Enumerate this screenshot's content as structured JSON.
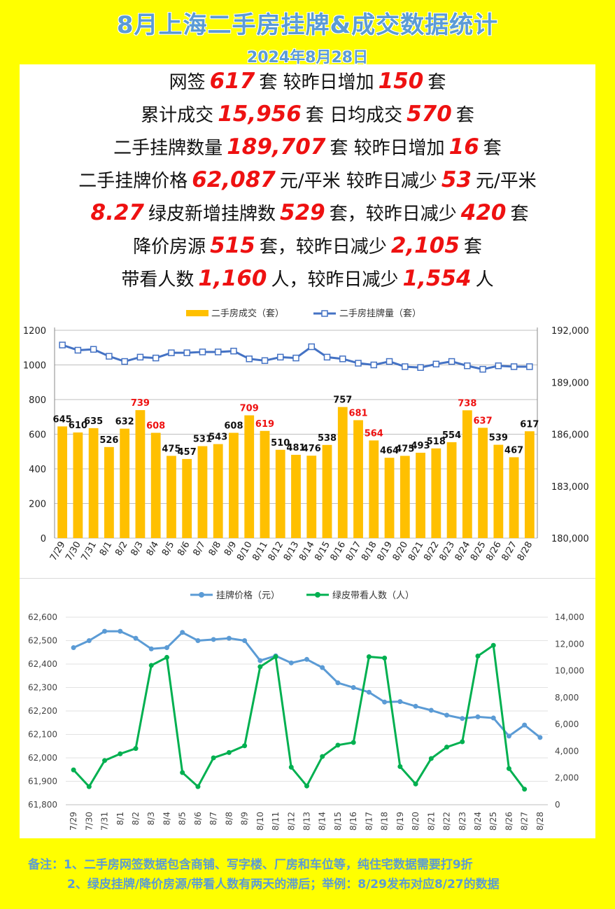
{
  "header": {
    "title": "8月上海二手房挂牌&成交数据统计",
    "date": "2024年8月28日"
  },
  "stats": [
    {
      "t1": "网签",
      "v1": "617",
      "t2": "套 较昨日增加",
      "v2": "150",
      "t3": "套"
    },
    {
      "t1": "累计成交",
      "v1": "15,956",
      "t2": "套 日均成交",
      "v2": "570",
      "t3": "套"
    },
    {
      "t1": "二手挂牌数量",
      "v1": "189,707",
      "t2": "套 较昨日增加",
      "v2": "16",
      "t3": "套"
    },
    {
      "t1": "二手挂牌价格",
      "v1": "62,087",
      "t2": "元/平米 较昨日减少",
      "v2": "53",
      "t3": "元/平米"
    },
    {
      "t1": "",
      "v1": "8.27",
      "t2": "绿皮新增挂牌数",
      "v2": "529",
      "t3": "套，较昨日减少",
      "v3": "420",
      "t4": "套"
    },
    {
      "t1": "降价房源",
      "v1": "515",
      "t2": "套，较昨日减少",
      "v2": "2,105",
      "t3": "套"
    },
    {
      "t1": "带看人数",
      "v1": "1,160",
      "t2": "人，较昨日减少",
      "v2": "1,554",
      "t3": "人"
    }
  ],
  "notes": {
    "line1": "备注：1、二手房网签数据包含商铺、写字楼、厂房和车位等，纯住宅数据需要打9折",
    "line2": "2、绿皮挂牌/降价房源/带看人数有两天的滞后；举例：8/29发布对应8/27的数据"
  },
  "colors": {
    "bar": "#ffc000",
    "listing_line": "#4472c4",
    "price_line": "#5b9bd5",
    "viewing_line": "#00b050",
    "highlight_label": "#ee1111"
  },
  "chart_data": [
    {
      "type": "bar",
      "title": "",
      "categories": [
        "7/29",
        "7/30",
        "7/31",
        "8/1",
        "8/2",
        "8/3",
        "8/4",
        "8/5",
        "8/6",
        "8/7",
        "8/8",
        "8/9",
        "8/10",
        "8/11",
        "8/12",
        "8/13",
        "8/14",
        "8/15",
        "8/16",
        "8/17",
        "8/18",
        "8/19",
        "8/20",
        "8/21",
        "8/22",
        "8/23",
        "8/24",
        "8/25",
        "8/26",
        "8/27",
        "8/28"
      ],
      "series": [
        {
          "name": "二手房成交（套）",
          "axis": "left",
          "values": [
            645,
            610,
            635,
            526,
            632,
            739,
            608,
            475,
            457,
            531,
            543,
            608,
            709,
            619,
            510,
            481,
            476,
            538,
            757,
            681,
            564,
            464,
            475,
            493,
            518,
            554,
            738,
            637,
            539,
            467,
            617
          ],
          "highlighted": [
            false,
            false,
            false,
            false,
            false,
            true,
            true,
            false,
            false,
            false,
            false,
            false,
            true,
            true,
            false,
            false,
            false,
            false,
            false,
            true,
            true,
            false,
            false,
            false,
            false,
            false,
            true,
            true,
            false,
            false,
            false
          ]
        },
        {
          "name": "二手房挂牌量（套）",
          "axis": "right",
          "type": "line",
          "values": [
            191150,
            190850,
            190900,
            190500,
            190200,
            190450,
            190400,
            190700,
            190700,
            190750,
            190750,
            190800,
            190350,
            190250,
            190450,
            190400,
            191050,
            190450,
            190350,
            190100,
            190000,
            190200,
            189900,
            189850,
            190050,
            190200,
            189950,
            189750,
            189950,
            189900,
            189900
          ]
        }
      ],
      "yleft": {
        "min": 0,
        "max": 1200,
        "ticks": [
          0,
          200,
          400,
          600,
          800,
          1000,
          1200
        ]
      },
      "yright": {
        "min": 180000,
        "max": 192000,
        "ticks": [
          "180,000",
          "183,000",
          "186,000",
          "189,000",
          "192,000"
        ]
      },
      "legend": "top"
    },
    {
      "type": "line",
      "title": "",
      "categories": [
        "7/29",
        "7/30",
        "7/31",
        "8/1",
        "8/2",
        "8/3",
        "8/4",
        "8/5",
        "8/6",
        "8/7",
        "8/8",
        "8/9",
        "8/10",
        "8/11",
        "8/12",
        "8/13",
        "8/14",
        "8/15",
        "8/16",
        "8/17",
        "8/18",
        "8/19",
        "8/20",
        "8/21",
        "8/22",
        "8/23",
        "8/24",
        "8/25",
        "8/26",
        "8/27",
        "8/28"
      ],
      "series": [
        {
          "name": "挂牌价格（元）",
          "axis": "left",
          "values": [
            62470,
            62500,
            62540,
            62540,
            62510,
            62465,
            62470,
            62535,
            62500,
            62505,
            62510,
            62500,
            62415,
            62435,
            62405,
            62420,
            62385,
            62320,
            62300,
            62280,
            62238,
            62240,
            62220,
            62203,
            62182,
            62168,
            62175,
            62170,
            62093,
            62140,
            62087
          ]
        },
        {
          "name": "绿皮带看人数（人）",
          "axis": "right",
          "values": [
            2600,
            1350,
            3300,
            3800,
            4200,
            10400,
            11000,
            2400,
            1350,
            3500,
            3900,
            4400,
            10300,
            11050,
            2800,
            1400,
            3600,
            4450,
            4650,
            11050,
            10950,
            2850,
            1550,
            3450,
            4300,
            4700,
            11100,
            11900,
            2700,
            1160,
            null
          ]
        }
      ],
      "yleft": {
        "min": 61800,
        "max": 62600,
        "ticks": [
          "61,800",
          "61,900",
          "62,000",
          "62,100",
          "62,200",
          "62,300",
          "62,400",
          "62,500",
          "62,600"
        ]
      },
      "yright": {
        "min": 0,
        "max": 14000,
        "ticks": [
          "0",
          "2,000",
          "4,000",
          "6,000",
          "8,000",
          "10,000",
          "12,000",
          "14,000"
        ]
      },
      "legend": "top"
    }
  ]
}
